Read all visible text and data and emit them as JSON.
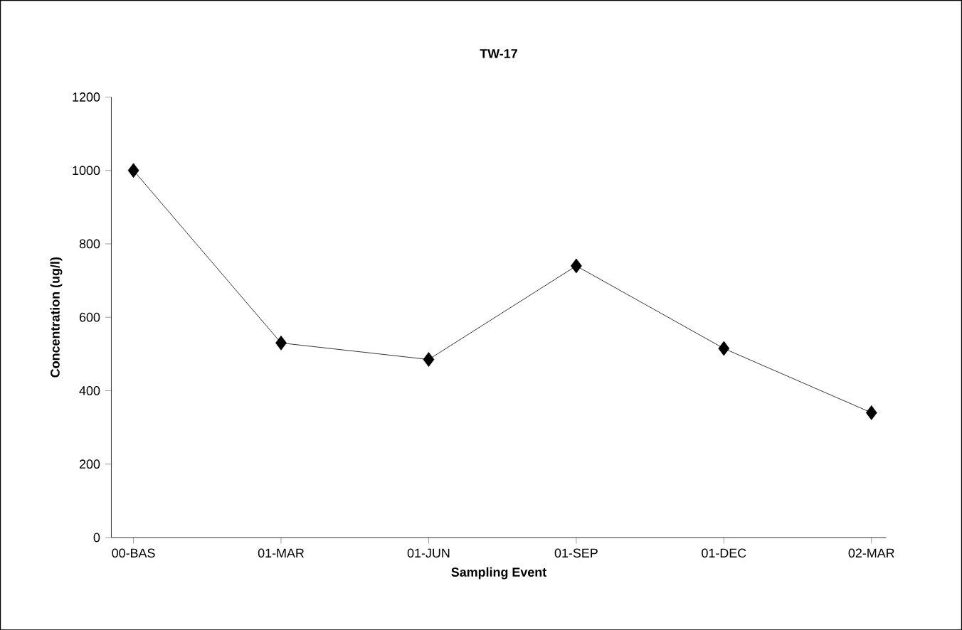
{
  "chart_data": {
    "type": "line",
    "title": "TW-17",
    "xlabel": "Sampling Event",
    "ylabel": "Concentration (ug/l)",
    "categories": [
      "00-BAS",
      "01-MAR",
      "01-JUN",
      "01-SEP",
      "01-DEC",
      "02-MAR"
    ],
    "series": [
      {
        "color": "#000000",
        "values": [
          1000,
          530,
          485,
          740,
          515,
          340
        ]
      }
    ],
    "ylim": [
      0,
      1200
    ],
    "yticks": [
      0,
      200,
      400,
      600,
      800,
      1000,
      1200
    ],
    "marker": "diamond",
    "line_style": "solid",
    "grid": false
  }
}
